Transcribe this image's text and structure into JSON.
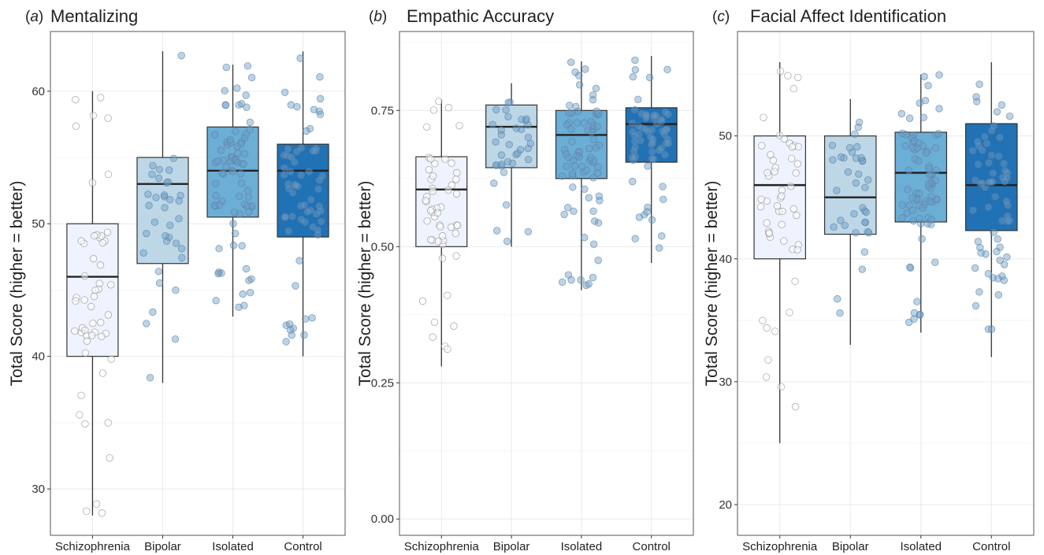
{
  "chart_data": [
    {
      "type": "box",
      "panel_letter": "a",
      "title": "Mentalizing",
      "ylabel": "Total Score (higher = better)",
      "xlabel": "",
      "categories": [
        "Schizophrenia",
        "Bipolar",
        "Isolated",
        "Control"
      ],
      "ylim": [
        26.5,
        64.5
      ],
      "y_ticks": [
        30,
        40,
        50,
        60
      ],
      "y_tick_labels": [
        "30",
        "40",
        "50",
        "60"
      ],
      "grid": true,
      "boxes": [
        {
          "category": "Schizophrenia",
          "min": 28,
          "q1": 40,
          "median": 46,
          "q3": 50,
          "max": 60
        },
        {
          "category": "Bipolar",
          "min": 38,
          "q1": 47,
          "median": 53,
          "q3": 55,
          "max": 63
        },
        {
          "category": "Isolated",
          "min": 43,
          "q1": 50.5,
          "median": 54,
          "q3": 57.3,
          "max": 62
        },
        {
          "category": "Control",
          "min": 40,
          "q1": 49,
          "median": 54,
          "q3": 56,
          "max": 63
        }
      ]
    },
    {
      "type": "box",
      "panel_letter": "b",
      "title": "Empathic Accuracy",
      "ylabel": "Total Score (higher = better)",
      "xlabel": "",
      "categories": [
        "Schizophrenia",
        "Bipolar",
        "Isolated",
        "Control"
      ],
      "ylim": [
        -0.03,
        0.895
      ],
      "y_ticks": [
        0,
        0.25,
        0.5,
        0.75
      ],
      "y_tick_labels": [
        "0.00",
        "0.25",
        "0.50",
        "0.75"
      ],
      "grid": true,
      "boxes": [
        {
          "category": "Schizophrenia",
          "min": 0.28,
          "q1": 0.5,
          "median": 0.605,
          "q3": 0.665,
          "max": 0.77
        },
        {
          "category": "Bipolar",
          "min": 0.5,
          "q1": 0.645,
          "median": 0.72,
          "q3": 0.76,
          "max": 0.8
        },
        {
          "category": "Isolated",
          "min": 0.42,
          "q1": 0.625,
          "median": 0.705,
          "q3": 0.75,
          "max": 0.84
        },
        {
          "category": "Control",
          "min": 0.47,
          "q1": 0.655,
          "median": 0.725,
          "q3": 0.755,
          "max": 0.85
        }
      ]
    },
    {
      "type": "box",
      "panel_letter": "c",
      "title": "Facial Affect Identification",
      "ylabel": "Total Score (higher = better)",
      "xlabel": "",
      "categories": [
        "Schizophrenia",
        "Bipolar",
        "Isolated",
        "Control"
      ],
      "ylim": [
        17.5,
        58.5
      ],
      "y_ticks": [
        20,
        30,
        40,
        50
      ],
      "y_tick_labels": [
        "20",
        "30",
        "40",
        "50"
      ],
      "grid": true,
      "boxes": [
        {
          "category": "Schizophrenia",
          "min": 25,
          "q1": 40,
          "median": 46,
          "q3": 50,
          "max": 56
        },
        {
          "category": "Bipolar",
          "min": 33,
          "q1": 42,
          "median": 45,
          "q3": 50,
          "max": 53
        },
        {
          "category": "Isolated",
          "min": 34,
          "q1": 43,
          "median": 47,
          "q3": 50.3,
          "max": 55
        },
        {
          "category": "Control",
          "min": 32,
          "q1": 42.3,
          "median": 46,
          "q3": 51,
          "max": 56
        }
      ]
    }
  ],
  "colors": {
    "Schizophrenia": "#eff3ff",
    "Bipolar": "#bdd7e7",
    "Isolated": "#6baed6",
    "Control": "#2171b5",
    "grid": "#ececec",
    "panel_border": "#555555",
    "box_line": "#333333"
  }
}
